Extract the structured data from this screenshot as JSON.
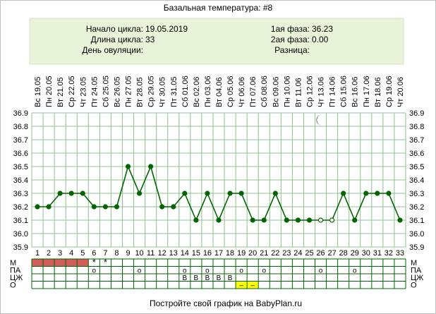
{
  "title": "Базальная температура: #8",
  "info": {
    "left_labels": [
      "Начало цикла:",
      "Длина цикла:",
      "День овуляции:"
    ],
    "left_values": [
      "19.05.2019",
      "33",
      ""
    ],
    "right_labels": [
      "1ая фаза:",
      "2ая фаза:",
      "Разница:"
    ],
    "right_values": [
      "36.23",
      "0.00",
      ""
    ]
  },
  "footer": "Постройте свой график на BabyPlan.ru",
  "row_labels": [
    "М",
    "ПА",
    "ЦЖ",
    "О"
  ],
  "moon_icon": "crescent-moon-icon",
  "moon_day": 26,
  "colors": {
    "header_bg": "#e9f3d9",
    "line": "#006400",
    "grid": "#8fc08f",
    "menses": "#d85b5b",
    "symbol": "#d43a3a",
    "ovulation_test": "#ffff00"
  },
  "chart_data": {
    "type": "line",
    "dates": [
      "19.05",
      "20.05",
      "21.05",
      "22.05",
      "23.05",
      "24.05",
      "25.05",
      "26.05",
      "27.05",
      "28.05",
      "29.05",
      "30.05",
      "31.05",
      "01.06",
      "02.06",
      "03.06",
      "04.06",
      "05.06",
      "06.06",
      "07.06",
      "08.06",
      "09.06",
      "10.06",
      "11.06",
      "12.06",
      "13.06",
      "14.06",
      "15.06",
      "16.06",
      "17.06",
      "18.06",
      "19.06",
      "20.06"
    ],
    "weekdays": [
      "Вс",
      "Пн",
      "Вт",
      "Ср",
      "Чт",
      "Пт",
      "Сб",
      "Вс",
      "Пн",
      "Вт",
      "Ср",
      "Чт",
      "Пт",
      "Сб",
      "Вс",
      "Пн",
      "Вт",
      "Ср",
      "Чт",
      "Пт",
      "Сб",
      "Вс",
      "Пн",
      "Вт",
      "Ср",
      "Чт",
      "Пт",
      "Сб",
      "Вс",
      "Пн",
      "Вт",
      "Ср",
      "Чт"
    ],
    "days": [
      1,
      2,
      3,
      4,
      5,
      6,
      7,
      8,
      9,
      10,
      11,
      12,
      13,
      14,
      15,
      16,
      17,
      18,
      19,
      20,
      21,
      22,
      23,
      24,
      25,
      26,
      27,
      28,
      29,
      30,
      31,
      32,
      33
    ],
    "values": [
      36.2,
      36.2,
      36.3,
      36.3,
      36.3,
      36.2,
      36.2,
      36.2,
      36.5,
      36.3,
      36.5,
      36.2,
      36.2,
      36.3,
      36.1,
      36.3,
      36.1,
      36.3,
      36.3,
      36.1,
      36.1,
      36.3,
      36.1,
      36.1,
      36.1,
      36.1,
      36.1,
      36.3,
      36.1,
      36.3,
      36.3,
      36.3,
      36.1
    ],
    "hollow_days": [
      26,
      27
    ],
    "ylim": [
      35.9,
      36.9
    ],
    "yticks": [
      "36.9",
      "36.8",
      "36.7",
      "36.6",
      "36.5",
      "36.4",
      "36.3",
      "36.2",
      "36.1",
      "36.0",
      "35.9"
    ],
    "grid": true,
    "menses_days": [
      1,
      2,
      3,
      4,
      5
    ],
    "m_marks": [
      {
        "day": 6,
        "symbol": "*"
      },
      {
        "day": 7,
        "symbol": "*"
      }
    ],
    "pa_marks": [
      {
        "day": 6,
        "symbol": "o"
      },
      {
        "day": 10,
        "symbol": "o"
      },
      {
        "day": 14,
        "symbol": "o"
      },
      {
        "day": 16,
        "symbol": "o"
      },
      {
        "day": 19,
        "symbol": "o"
      },
      {
        "day": 21,
        "symbol": "o"
      },
      {
        "day": 26,
        "symbol": "o"
      },
      {
        "day": 29,
        "symbol": "o"
      }
    ],
    "cz_marks": [
      {
        "day": 14,
        "symbol": "В"
      },
      {
        "day": 15,
        "symbol": "В"
      },
      {
        "day": 16,
        "symbol": "В"
      },
      {
        "day": 17,
        "symbol": "В"
      },
      {
        "day": 18,
        "symbol": "В"
      }
    ],
    "o_marks": [
      {
        "day": 19,
        "symbol": "–"
      },
      {
        "day": 20,
        "symbol": "–"
      }
    ]
  }
}
